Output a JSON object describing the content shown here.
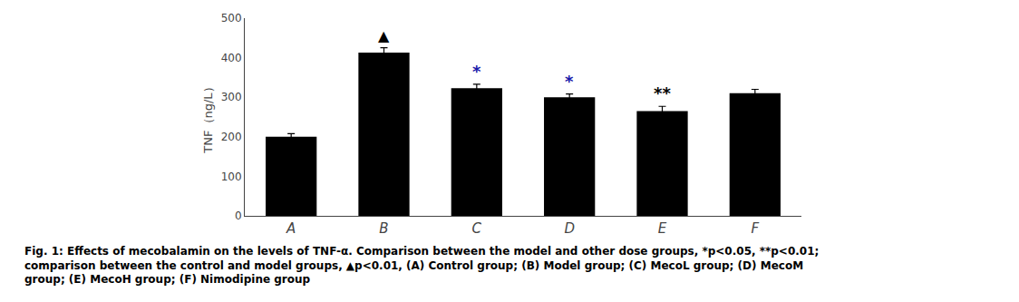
{
  "chart_data": {
    "type": "bar",
    "categories": [
      "A",
      "B",
      "C",
      "D",
      "E",
      "F"
    ],
    "values": [
      200,
      413,
      323,
      300,
      265,
      310
    ],
    "errors": [
      8,
      12,
      10,
      8,
      12,
      10
    ],
    "color": "#000000",
    "ylim": [
      0,
      500
    ],
    "yticks": [
      0,
      100,
      200,
      300,
      400,
      500
    ],
    "ylabel": "TNF（ng/L）",
    "grid": false,
    "annotations": [
      {
        "category": "B",
        "text": "▲",
        "color": "#000000"
      },
      {
        "category": "C",
        "text": "*",
        "color": "#1a1aaa"
      },
      {
        "category": "D",
        "text": "*",
        "color": "#1a1aaa"
      },
      {
        "category": "E",
        "text": "**",
        "color": "#000000"
      }
    ],
    "caption": [
      "Fig. 1: Effects of mecobalamin on the levels of TNF-α. Comparison between the model and other dose groups, *p<0.05, **p<0.01;",
      "comparison between the control and model groups, ▲p<0.01, (A) Control group; (B) Model group; (C) MecoL group; (D) MecoM",
      "group; (E) MecoH group; (F) Nimodipine group"
    ]
  }
}
